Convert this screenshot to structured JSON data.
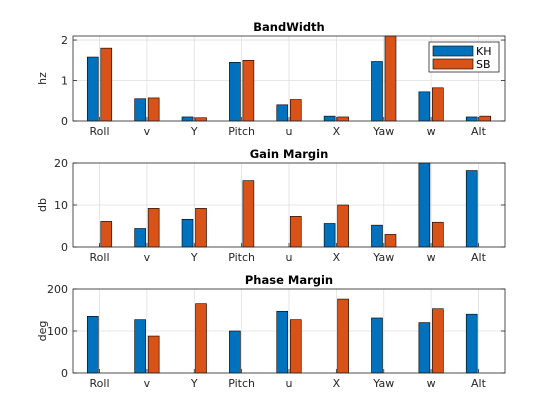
{
  "figure": {
    "colors": {
      "KH": "#0072BD",
      "SB": "#D95319",
      "grid": "#dfdfdf",
      "axis": "#262626",
      "edge": "#000000"
    }
  },
  "chart_data": [
    {
      "type": "bar",
      "title": "BandWidth",
      "ylabel": "hz",
      "xlabel": "",
      "ylim": [
        0,
        2.1
      ],
      "yticks": [
        0,
        1,
        2
      ],
      "grid": true,
      "legend": {
        "placement": "top-right",
        "entries": [
          "KH",
          "SB"
        ]
      },
      "categories": [
        "Roll",
        "v",
        "Y",
        "Pitch",
        "u",
        "X",
        "Yaw",
        "w",
        "Alt"
      ],
      "series": [
        {
          "name": "KH",
          "values": [
            1.58,
            0.55,
            0.1,
            1.45,
            0.4,
            0.12,
            1.47,
            0.72,
            0.1
          ]
        },
        {
          "name": "SB",
          "values": [
            1.8,
            0.57,
            0.08,
            1.5,
            0.53,
            0.1,
            2.1,
            0.82,
            0.12
          ]
        }
      ]
    },
    {
      "type": "bar",
      "title": "Gain Margin",
      "ylabel": "db",
      "xlabel": "",
      "ylim": [
        0,
        20
      ],
      "yticks": [
        0,
        10,
        20
      ],
      "grid": true,
      "categories": [
        "Roll",
        "v",
        "Y",
        "Pitch",
        "u",
        "X",
        "Yaw",
        "w",
        "Alt"
      ],
      "series": [
        {
          "name": "KH",
          "values": [
            0,
            4.4,
            6.6,
            0,
            0,
            5.6,
            5.2,
            20.5,
            18.2
          ]
        },
        {
          "name": "SB",
          "values": [
            6.1,
            9.2,
            9.2,
            15.8,
            7.3,
            10,
            3,
            5.9,
            0
          ]
        }
      ]
    },
    {
      "type": "bar",
      "title": "Phase Margin",
      "ylabel": "deg",
      "xlabel": "",
      "ylim": [
        0,
        200
      ],
      "yticks": [
        0,
        100,
        200
      ],
      "grid": true,
      "categories": [
        "Roll",
        "v",
        "Y",
        "Pitch",
        "u",
        "X",
        "Yaw",
        "w",
        "Alt"
      ],
      "series": [
        {
          "name": "KH",
          "values": [
            135,
            127,
            0,
            100,
            147,
            0,
            131,
            120,
            140
          ]
        },
        {
          "name": "SB",
          "values": [
            0,
            88,
            165,
            0,
            127,
            176,
            0,
            153,
            0
          ]
        }
      ]
    }
  ]
}
